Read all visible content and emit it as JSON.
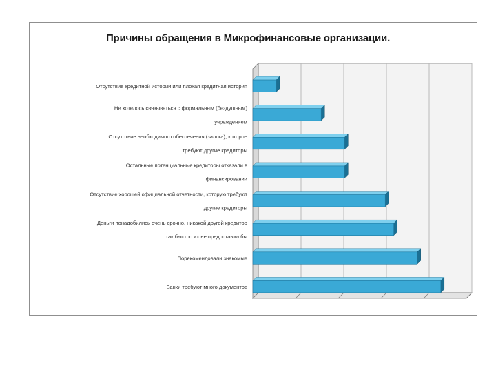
{
  "chart_data": {
    "type": "bar",
    "orientation": "horizontal",
    "title": "Причины обращения в Микрофинансовые организации.",
    "xlabel": "",
    "ylabel": "",
    "grid": true,
    "legend": "none",
    "xlim": [
      0,
      100
    ],
    "categories": [
      "Отсутствие кредитной истории или плохая кредитная история",
      "Не хотелось связываться с формальным (бездушным) учреждением",
      "Отсутствие необходимого обеспечения (залога), которое требуют другие кредиторы",
      "Остальные потенциальные кредиторы отказали в финансировании",
      "Отсутствие хорошей официальной отчетности, которую требуют другие кредиторы",
      "Деньги понадобились очень срочно, никакой другой кредитор так быстро их не предоставил бы",
      "Порекомендовали знакомые",
      "Банки требуют много документов"
    ],
    "values": [
      11,
      32,
      43,
      43,
      62,
      66,
      77,
      88
    ],
    "colors": {
      "bar_front": "#3aa9d6",
      "bar_top": "#7fd0ee",
      "bar_side": "#1b6f93",
      "wall": "#f3f3f3",
      "grid": "#b8b8b8",
      "axis": "#7a7a7a"
    }
  }
}
